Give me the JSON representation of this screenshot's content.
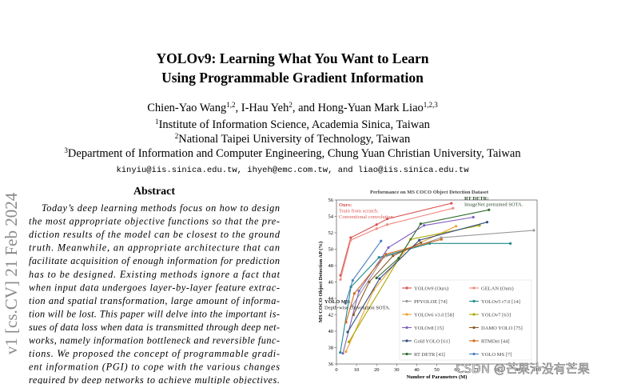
{
  "sidebar": "v1  [cs.CV]  21 Feb 2024",
  "header": {
    "title": [
      "YOLOv9: Learning What You Want to Learn",
      "Using Programmable Gradient Information"
    ],
    "authors": [
      {
        "text": "Chien-Yao Wang",
        "sup": "1,2"
      },
      {
        "text": ", I-Hau Yeh",
        "sup": "2"
      },
      {
        "text": ", and Hong-Yuan Mark Liao",
        "sup": "1,2,3"
      }
    ],
    "affiliations": [
      {
        "sup": "1",
        "text": "Institute of Information Science, Academia Sinica, Taiwan"
      },
      {
        "sup": "2",
        "text": "National Taipei University of Technology, Taiwan"
      },
      {
        "sup": "3",
        "text": "Department of Information and Computer Engineering, Chung Yuan Christian University, Taiwan"
      }
    ],
    "emails": "kinyiu@iis.sinica.edu.tw, ihyeh@emc.com.tw, and liao@iis.sinica.edu.tw"
  },
  "abstract": {
    "heading": "Abstract",
    "lines": [
      "Today’s deep learning methods focus on how to design",
      "the most appropriate objective functions so that the pre-",
      "diction results of the model can be closest to the ground",
      "truth.  Meanwhile, an appropriate architecture that can",
      "facilitate acquisition of enough information for prediction",
      "has to be designed.  Existing methods ignore a fact that",
      "when input data undergoes layer-by-layer feature extrac-",
      "tion and spatial transformation, large amount of informa-",
      "tion will be lost. This paper will delve into the important is-",
      "sues of data loss when data is transmitted through deep net-",
      "works, namely information bottleneck and reversible func-",
      "tions.  We proposed the concept of programmable gradi-",
      "ent information (PGI) to cope with the various changes",
      "required by deep networks to achieve multiple objectives."
    ]
  },
  "chart_data": {
    "type": "line",
    "title": "Performance on MS COCO Object Detection Dataset",
    "x_label": "Number of Parameters (M)",
    "y_label": "MS COCO Object Detection AP (%)",
    "xlim": [
      0,
      100
    ],
    "xticks": [
      0,
      10,
      20,
      30,
      40,
      50,
      60,
      70,
      80,
      90,
      100
    ],
    "ylim": [
      36,
      56
    ],
    "yticks": [
      36,
      38,
      40,
      42,
      44,
      46,
      48,
      50,
      52,
      54,
      56
    ],
    "legend": "lower right",
    "annotations": [
      {
        "color": "#d9534f",
        "lines": [
          "Ours:",
          "Train from scratch.",
          "Conventional convolution."
        ]
      },
      {
        "color": "#2e4a2e",
        "lines": [
          "RT DETR:",
          "ImageNet pretrained SOTA."
        ]
      },
      {
        "color": "#222222",
        "lines": [
          "YOLO MS:",
          "Depth-wise convolution SOTA."
        ]
      }
    ],
    "series": [
      {
        "name": "YOLOv9 (Ours)",
        "color": "#d9534f",
        "x": [
          2.0,
          7.1,
          20.0,
          25.3,
          57.3
        ],
        "values": [
          46.8,
          51.4,
          53.0,
          53.7,
          55.6
        ]
      },
      {
        "name": "GELAN (Ours)",
        "color": "#f08a80",
        "x": [
          2.0,
          7.1,
          20.0,
          25.3,
          58.1
        ],
        "values": [
          46.3,
          51.1,
          52.5,
          53.0,
          55.0
        ]
      },
      {
        "name": "PPYOLOE [74]",
        "color": "#9a9a9a",
        "x": [
          7.9,
          23.4,
          52.2,
          98.4
        ],
        "values": [
          43.1,
          49.0,
          51.4,
          52.3
        ]
      },
      {
        "name": "YOLOv5 r7.0 [14]",
        "color": "#1f8a8a",
        "x": [
          1.9,
          7.2,
          21.2,
          46.5,
          86.7
        ],
        "values": [
          37.4,
          45.4,
          49.0,
          50.7,
          50.7
        ]
      },
      {
        "name": "YOLOv6 v3.0 [58]",
        "color": "#f0a030",
        "x": [
          4.7,
          18.5,
          34.9,
          59.6
        ],
        "values": [
          37.5,
          45.0,
          50.0,
          52.8
        ]
      },
      {
        "name": "YOLOv7 [63]",
        "color": "#a8a800",
        "x": [
          6.2,
          36.9,
          71.3
        ],
        "values": [
          38.7,
          51.2,
          52.9
        ]
      },
      {
        "name": "YOLOv8 [15]",
        "color": "#8060c0",
        "x": [
          3.2,
          11.2,
          25.9,
          43.7,
          68.2
        ],
        "values": [
          37.3,
          44.9,
          50.2,
          52.9,
          53.9
        ]
      },
      {
        "name": "DAMO YOLO [75]",
        "color": "#8b5a2b",
        "x": [
          8.5,
          16.3,
          28.2,
          42.1
        ],
        "values": [
          42.0,
          46.0,
          49.2,
          50.8
        ]
      },
      {
        "name": "Gold YOLO [61]",
        "color": "#334d80",
        "x": [
          5.6,
          21.5,
          41.3,
          75.1
        ],
        "values": [
          39.9,
          46.4,
          51.1,
          53.3
        ]
      },
      {
        "name": "RTMDet [44]",
        "color": "#d2691e",
        "x": [
          4.8,
          8.9,
          24.7,
          52.3
        ],
        "values": [
          41.1,
          44.6,
          49.4,
          51.2
        ]
      },
      {
        "name": "RT DETR [43]",
        "color": "#2e6b2e",
        "x": [
          20,
          31,
          42,
          76
        ],
        "values": [
          46.5,
          48.9,
          53.1,
          54.8
        ]
      },
      {
        "name": "YOLO MS [7]",
        "color": "#4a7fc0",
        "x": [
          4.5,
          8.1,
          22.2
        ],
        "values": [
          43.4,
          46.2,
          51.0
        ]
      }
    ]
  },
  "watermark": "CSDN @芒果汁没有芒果"
}
